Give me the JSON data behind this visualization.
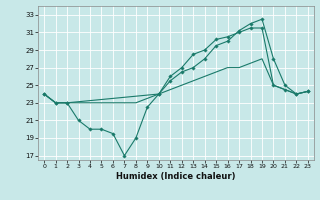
{
  "xlabel": "Humidex (Indice chaleur)",
  "ylabel": "",
  "bg_color": "#c8e8e8",
  "line_color": "#1a7a6a",
  "xlim": [
    -0.5,
    23.5
  ],
  "ylim": [
    16.5,
    34
  ],
  "yticks": [
    17,
    19,
    21,
    23,
    25,
    27,
    29,
    31,
    33
  ],
  "xticks": [
    0,
    1,
    2,
    3,
    4,
    5,
    6,
    7,
    8,
    9,
    10,
    11,
    12,
    13,
    14,
    15,
    16,
    17,
    18,
    19,
    20,
    21,
    22,
    23
  ],
  "line1_x": [
    0,
    1,
    2,
    3,
    4,
    5,
    6,
    7,
    8,
    9,
    10,
    11,
    12,
    13,
    14,
    15,
    16,
    17,
    18,
    19,
    20,
    21,
    22,
    23
  ],
  "line1_y": [
    24,
    23,
    23,
    21,
    20,
    20,
    19.5,
    17,
    19,
    22.5,
    24,
    26,
    27,
    28.5,
    29,
    30.2,
    30.5,
    31,
    31.5,
    31.5,
    25,
    24.5,
    24,
    24.3
  ],
  "line2_x": [
    0,
    1,
    2,
    10,
    11,
    12,
    13,
    14,
    15,
    16,
    17,
    18,
    19,
    20,
    21,
    22,
    23
  ],
  "line2_y": [
    24,
    23,
    23,
    24,
    25.5,
    26.5,
    27,
    28,
    29.5,
    30,
    31.2,
    32,
    32.5,
    28,
    25,
    24,
    24.3
  ],
  "line3_x": [
    0,
    1,
    2,
    3,
    4,
    5,
    6,
    7,
    8,
    9,
    10,
    11,
    12,
    13,
    14,
    15,
    16,
    17,
    18,
    19,
    20,
    21,
    22,
    23
  ],
  "line3_y": [
    24,
    23,
    23,
    23,
    23,
    23,
    23,
    23,
    23,
    23.5,
    24,
    24.5,
    25,
    25.5,
    26,
    26.5,
    27,
    27,
    27.5,
    28,
    25,
    24.5,
    24,
    24.3
  ]
}
